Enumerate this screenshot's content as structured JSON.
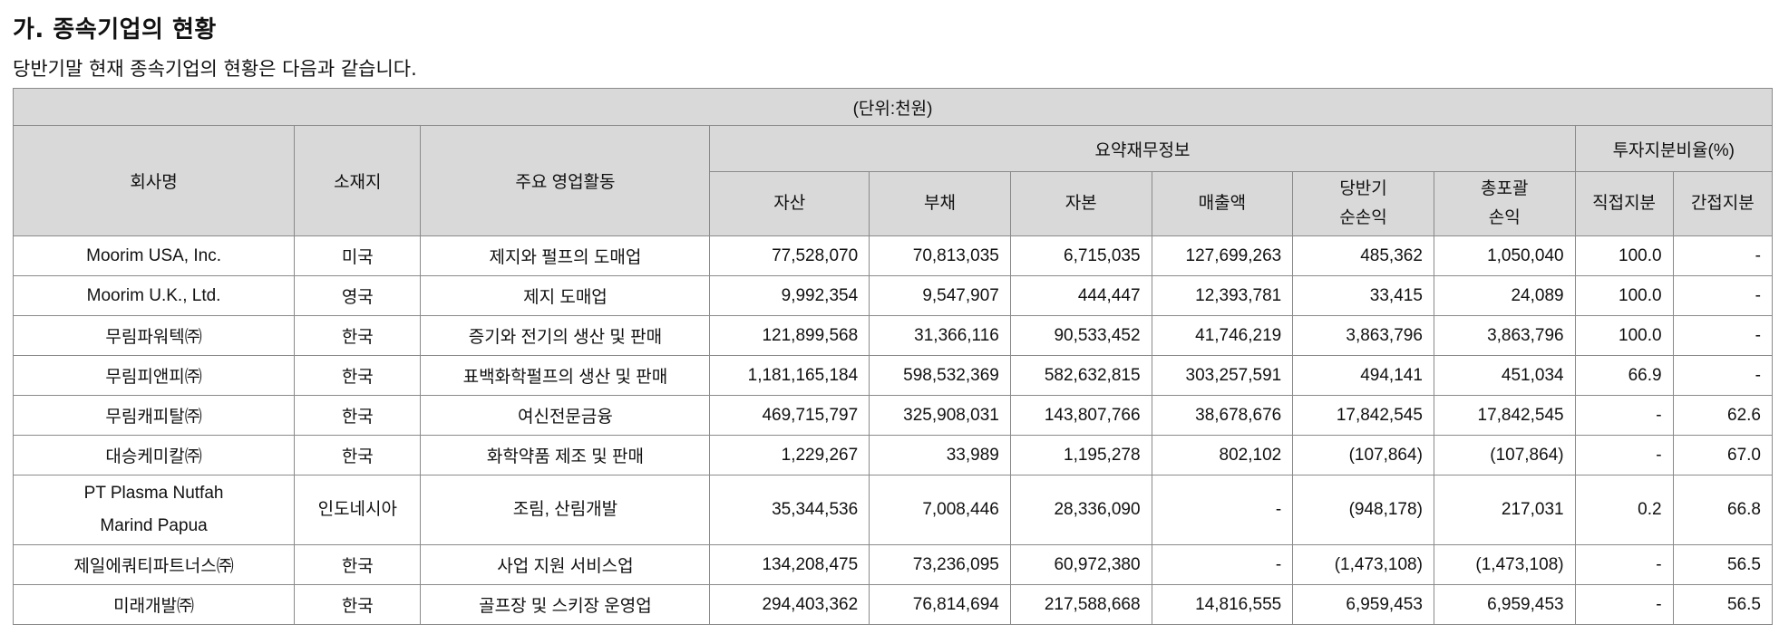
{
  "heading": "가. 종속기업의 현황",
  "description": "당반기말 현재 종속기업의 현황은 다음과 같습니다.",
  "table": {
    "unit": "(단위:천원)",
    "headers": {
      "company": "회사명",
      "location": "소재지",
      "business": "주요 영업활동",
      "financial_group": "요약재무정보",
      "investment_group": "투자지분비율(%)",
      "assets": "자산",
      "liabilities": "부채",
      "equity": "자본",
      "sales": "매출액",
      "net_income_1": "당반기",
      "net_income_2": "순손익",
      "comprehensive_1": "총포괄",
      "comprehensive_2": "손익",
      "direct": "직접지분",
      "indirect": "간접지분"
    },
    "rows": [
      {
        "company": "Moorim USA, Inc.",
        "company2": "",
        "location": "미국",
        "business": "제지와 펄프의 도매업",
        "assets": "77,528,070",
        "liabilities": "70,813,035",
        "equity": "6,715,035",
        "sales": "127,699,263",
        "net_income": "485,362",
        "comprehensive": "1,050,040",
        "direct": "100.0",
        "indirect": "-"
      },
      {
        "company": "Moorim U.K., Ltd.",
        "company2": "",
        "location": "영국",
        "business": "제지 도매업",
        "assets": "9,992,354",
        "liabilities": "9,547,907",
        "equity": "444,447",
        "sales": "12,393,781",
        "net_income": "33,415",
        "comprehensive": "24,089",
        "direct": "100.0",
        "indirect": "-"
      },
      {
        "company": "무림파워텍㈜",
        "company2": "",
        "location": "한국",
        "business": "증기와 전기의 생산 및 판매",
        "assets": "121,899,568",
        "liabilities": "31,366,116",
        "equity": "90,533,452",
        "sales": "41,746,219",
        "net_income": "3,863,796",
        "comprehensive": "3,863,796",
        "direct": "100.0",
        "indirect": "-"
      },
      {
        "company": "무림피앤피㈜",
        "company2": "",
        "location": "한국",
        "business": "표백화학펄프의 생산 및 판매",
        "assets": "1,181,165,184",
        "liabilities": "598,532,369",
        "equity": "582,632,815",
        "sales": "303,257,591",
        "net_income": "494,141",
        "comprehensive": "451,034",
        "direct": "66.9",
        "indirect": "-"
      },
      {
        "company": "무림캐피탈㈜",
        "company2": "",
        "location": "한국",
        "business": "여신전문금융",
        "assets": "469,715,797",
        "liabilities": "325,908,031",
        "equity": "143,807,766",
        "sales": "38,678,676",
        "net_income": "17,842,545",
        "comprehensive": "17,842,545",
        "direct": "-",
        "indirect": "62.6"
      },
      {
        "company": "대승케미칼㈜",
        "company2": "",
        "location": "한국",
        "business": "화학약품 제조 및 판매",
        "assets": "1,229,267",
        "liabilities": "33,989",
        "equity": "1,195,278",
        "sales": "802,102",
        "net_income": "(107,864)",
        "comprehensive": "(107,864)",
        "direct": "-",
        "indirect": "67.0"
      },
      {
        "company": "PT Plasma Nutfah",
        "company2": "Marind Papua",
        "location": "인도네시아",
        "business": "조림, 산림개발",
        "assets": "35,344,536",
        "liabilities": "7,008,446",
        "equity": "28,336,090",
        "sales": "-",
        "net_income": "(948,178)",
        "comprehensive": "217,031",
        "direct": "0.2",
        "indirect": "66.8"
      },
      {
        "company": "제일에쿼티파트너스㈜",
        "company2": "",
        "location": "한국",
        "business": "사업 지원 서비스업",
        "assets": "134,208,475",
        "liabilities": "73,236,095",
        "equity": "60,972,380",
        "sales": "-",
        "net_income": "(1,473,108)",
        "comprehensive": "(1,473,108)",
        "direct": "-",
        "indirect": "56.5"
      },
      {
        "company": "미래개발㈜",
        "company2": "",
        "location": "한국",
        "business": "골프장 및 스키장 운영업",
        "assets": "294,403,362",
        "liabilities": "76,814,694",
        "equity": "217,588,668",
        "sales": "14,816,555",
        "net_income": "6,959,453",
        "comprehensive": "6,959,453",
        "direct": "-",
        "indirect": "56.5"
      }
    ]
  }
}
